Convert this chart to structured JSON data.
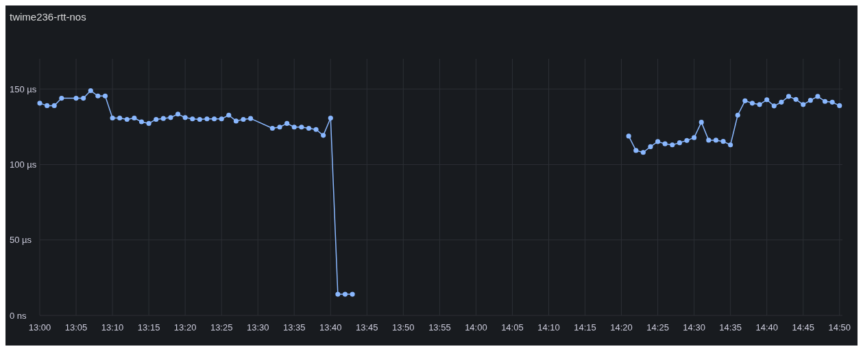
{
  "chart_data": {
    "type": "line",
    "title": "twime236-rtt-nos",
    "x": [
      13,
      13.0167,
      13.0333,
      13.05,
      13.0833,
      13.1,
      13.1167,
      13.1333,
      13.15,
      13.1667,
      13.1833,
      13.2,
      13.2167,
      13.2333,
      13.25,
      13.2667,
      13.2833,
      13.3,
      13.3167,
      13.3333,
      13.35,
      13.3667,
      13.3833,
      13.4,
      13.4167,
      13.4333,
      13.45,
      13.4667,
      13.4833,
      13.5333,
      13.55,
      13.5667,
      13.5833,
      13.6,
      13.6167,
      13.6333,
      13.65,
      13.6667,
      13.6833,
      13.7,
      13.7167,
      14,
      14.35,
      14.3667,
      14.3833,
      14.4,
      14.4167,
      14.4333,
      14.45,
      14.4667,
      14.4833,
      14.5,
      14.5167,
      14.5333,
      14.55,
      14.5667,
      14.5833,
      14.6,
      14.6167,
      14.6333,
      14.65,
      14.6667,
      14.6833,
      14.7,
      14.7167,
      14.7333,
      14.75,
      14.7667,
      14.7833,
      14.8,
      14.8167,
      14.8333
    ],
    "series": [
      {
        "color": "#8ab8ff",
        "values": [
          140.6,
          139,
          139,
          143.9,
          143.9,
          143.9,
          148.9,
          145.4,
          145.4,
          130.8,
          130.8,
          129.9,
          130.8,
          128.3,
          127.2,
          129.9,
          130.5,
          131.1,
          133.4,
          131.1,
          130.2,
          129.9,
          130.2,
          130.2,
          130.2,
          132.7,
          128.8,
          129.9,
          130.5,
          124,
          124.8,
          127.2,
          124.8,
          124.8,
          124,
          123.2,
          119.3,
          130.8,
          14,
          14,
          14,
          null,
          118.8,
          109.3,
          108,
          111.8,
          115.2,
          113.7,
          113,
          114.4,
          115.9,
          117.8,
          128,
          116.1,
          116.1,
          115.3,
          113,
          132.7,
          142.2,
          140.6,
          139.7,
          142.9,
          138.8,
          141.3,
          145.1,
          143.1,
          139.7,
          142.5,
          145.1,
          141.8,
          141.3,
          139
        ]
      }
    ],
    "xlim": [
      13,
      14.84
    ],
    "xticks": [
      {
        "value": 13,
        "label": "13:00"
      },
      {
        "value": 13.0833,
        "label": "13:05"
      },
      {
        "value": 13.1667,
        "label": "13:10"
      },
      {
        "value": 13.25,
        "label": "13:15"
      },
      {
        "value": 13.3333,
        "label": "13:20"
      },
      {
        "value": 13.4167,
        "label": "13:25"
      },
      {
        "value": 13.5,
        "label": "13:30"
      },
      {
        "value": 13.5833,
        "label": "13:35"
      },
      {
        "value": 13.6667,
        "label": "13:40"
      },
      {
        "value": 13.75,
        "label": "13:45"
      },
      {
        "value": 13.8333,
        "label": "13:50"
      },
      {
        "value": 13.9167,
        "label": "13:55"
      },
      {
        "value": 14,
        "label": "14:00"
      },
      {
        "value": 14.0833,
        "label": "14:05"
      },
      {
        "value": 14.1667,
        "label": "14:10"
      },
      {
        "value": 14.25,
        "label": "14:15"
      },
      {
        "value": 14.3333,
        "label": "14:20"
      },
      {
        "value": 14.4167,
        "label": "14:25"
      },
      {
        "value": 14.5,
        "label": "14:30"
      },
      {
        "value": 14.5833,
        "label": "14:35"
      },
      {
        "value": 14.6667,
        "label": "14:40"
      },
      {
        "value": 14.75,
        "label": "14:45"
      },
      {
        "value": 14.8333,
        "label": "14:50"
      }
    ],
    "ylim": [
      0,
      170
    ],
    "yticks": [
      {
        "value": 0,
        "label": "0 ns"
      },
      {
        "value": 50,
        "label": "50 µs"
      },
      {
        "value": 100,
        "label": "100 µs"
      },
      {
        "value": 150,
        "label": "150 µs"
      }
    ],
    "grid": true,
    "marker": "circle",
    "line_style": "solid"
  }
}
